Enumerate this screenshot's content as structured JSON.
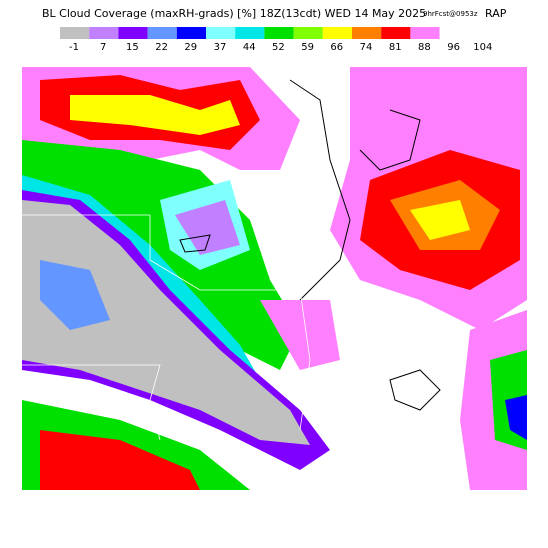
{
  "header": {
    "title": "BL Cloud Coverage (maxRH-grads) [%] 18Z(13cdt) WED 14 May 2025",
    "forecast": "9hrFcst@0953z",
    "model": "RAP"
  },
  "legend": {
    "labels": [
      -1,
      7,
      15,
      22,
      29,
      37,
      44,
      52,
      59,
      66,
      74,
      81,
      88,
      96,
      104
    ],
    "colors": [
      "#c0c0c0",
      "#c080ff",
      "#8000ff",
      "#6496ff",
      "#0000ff",
      "#80ffff",
      "#00e6e6",
      "#00e000",
      "#80ff00",
      "#ffff00",
      "#ff8000",
      "#ff0000",
      "#ff80ff",
      "#ffffff"
    ]
  }
}
